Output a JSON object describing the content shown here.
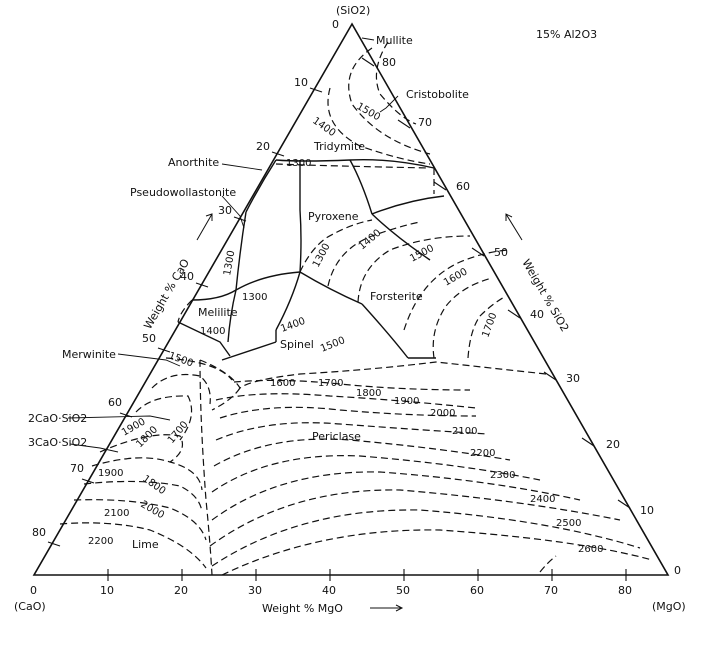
{
  "title": "15% Al2O3",
  "corners": {
    "top": "(SiO2)",
    "bottom_left": "(CaO)",
    "bottom_right": "(MgO)"
  },
  "axes": {
    "bottom": "Weight % MgO",
    "left": "Weight % CaO",
    "right": "Weight % SiO2"
  },
  "ticks": {
    "bottom": [
      "0",
      "10",
      "20",
      "30",
      "40",
      "50",
      "60",
      "70",
      "80"
    ],
    "right": [
      "80",
      "70",
      "60",
      "50",
      "40",
      "30",
      "20",
      "10",
      "0"
    ],
    "left": [
      "0",
      "10",
      "20",
      "30",
      "40",
      "50",
      "60",
      "70",
      "80"
    ]
  },
  "phase_fields": [
    "Mullite",
    "Cristobolite",
    "Tridymite",
    "Anorthite",
    "Pseudowollastonite",
    "Pyroxene",
    "Forsterite",
    "Melilite",
    "Spinel",
    "Merwinite",
    "2CaO·SiO2",
    "3CaO·SiO2",
    "Periclase",
    "Lime"
  ],
  "isotherms": [
    "1500",
    "1400",
    "1300",
    "1300",
    "1300",
    "1400",
    "1500",
    "1600",
    "1700",
    "1300",
    "1400",
    "1500",
    "1400",
    "1500",
    "1600",
    "1700",
    "1800",
    "1900",
    "2000",
    "2100",
    "2200",
    "2300",
    "2400",
    "2500",
    "2600",
    "1900",
    "1800",
    "1700",
    "1800",
    "1900",
    "2000",
    "2100",
    "2200"
  ]
}
